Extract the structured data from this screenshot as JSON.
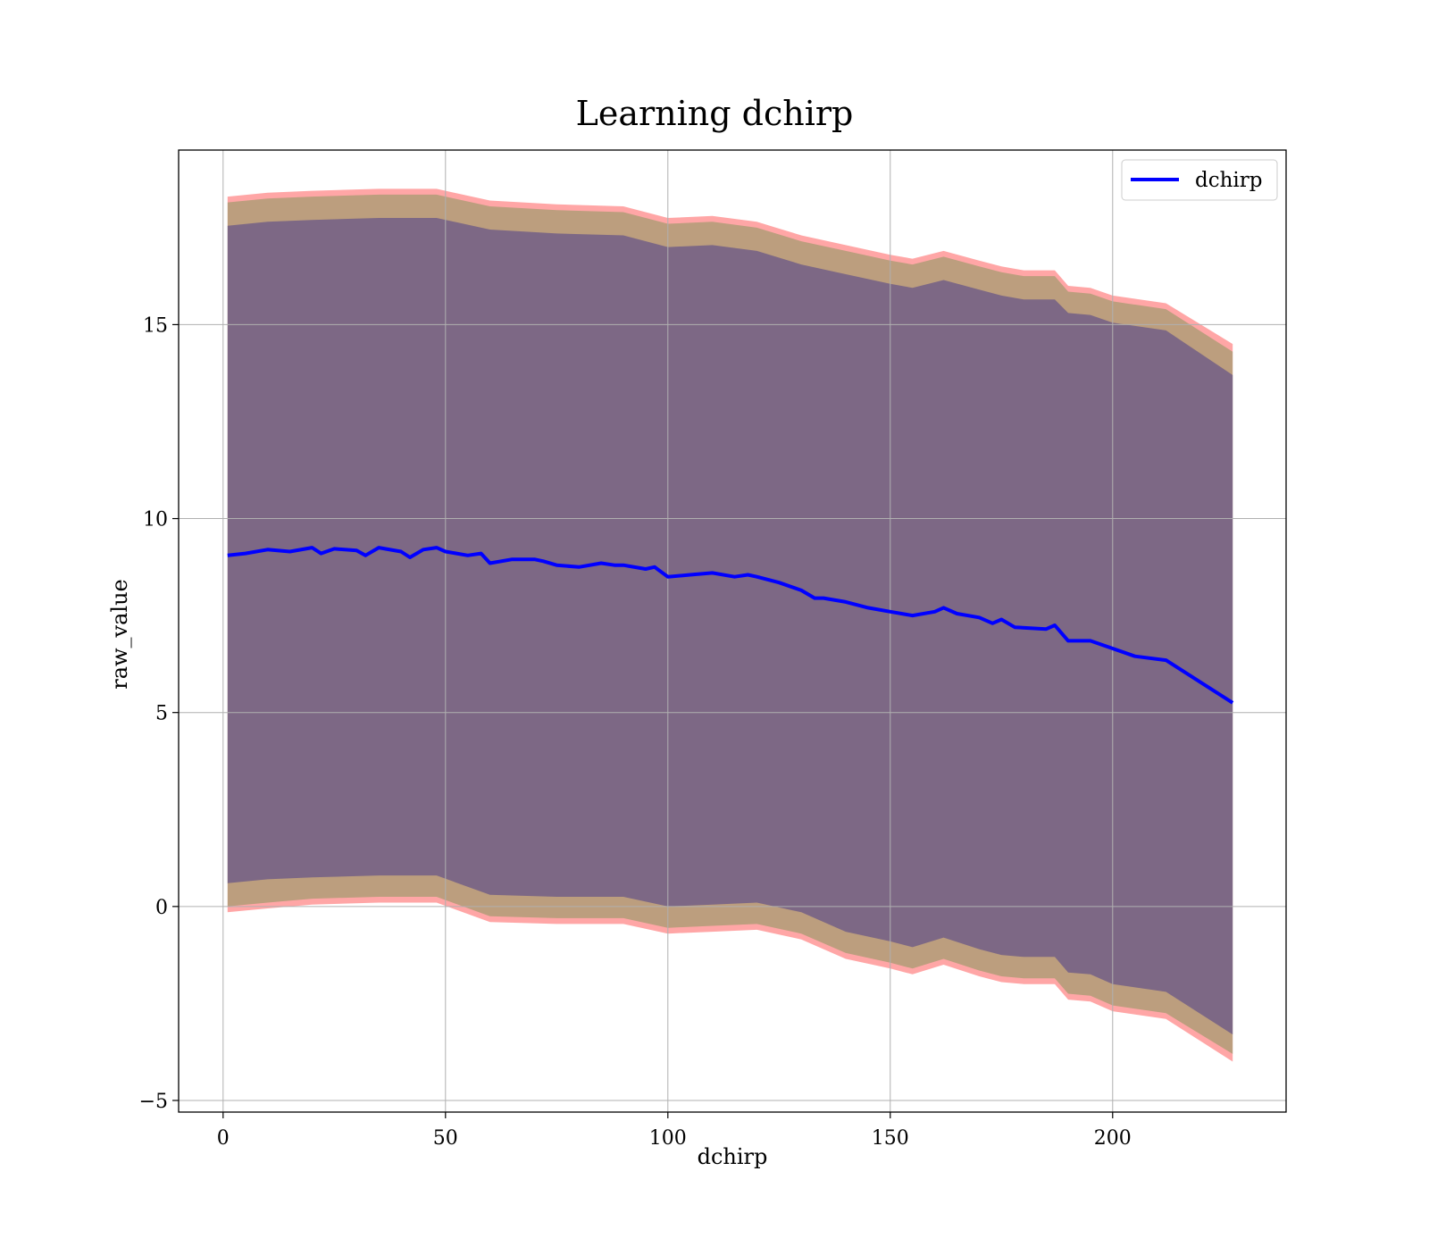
{
  "chart_data": {
    "type": "line",
    "title": "Learning dchirp",
    "xlabel": "dchirp",
    "ylabel": "raw_value",
    "xlim": [
      -10,
      239
    ],
    "ylim": [
      -5.3,
      19.5
    ],
    "xticks": [
      0,
      50,
      100,
      150,
      200
    ],
    "yticks": [
      -5,
      0,
      5,
      10,
      15
    ],
    "xtick_labels": [
      "0",
      "50",
      "100",
      "150",
      "200"
    ],
    "ytick_labels": [
      "−5",
      "0",
      "5",
      "10",
      "15"
    ],
    "grid": true,
    "legend_position": "top-right",
    "series": [
      {
        "name": "dchirp",
        "color": "#0000ff",
        "x": [
          1,
          5,
          10,
          15,
          20,
          22,
          25,
          30,
          32,
          35,
          40,
          42,
          45,
          48,
          50,
          55,
          58,
          60,
          65,
          70,
          72,
          75,
          80,
          85,
          88,
          90,
          95,
          97,
          100,
          105,
          110,
          115,
          118,
          120,
          125,
          130,
          133,
          135,
          140,
          145,
          150,
          155,
          160,
          162,
          165,
          170,
          173,
          175,
          178,
          185,
          187,
          190,
          195,
          200,
          205,
          212,
          227
        ],
        "y": [
          9.05,
          9.1,
          9.2,
          9.15,
          9.25,
          9.1,
          9.22,
          9.18,
          9.05,
          9.25,
          9.15,
          9.0,
          9.2,
          9.25,
          9.15,
          9.05,
          9.1,
          8.85,
          8.95,
          8.95,
          8.9,
          8.8,
          8.75,
          8.85,
          8.8,
          8.8,
          8.7,
          8.75,
          8.5,
          8.55,
          8.6,
          8.5,
          8.55,
          8.5,
          8.35,
          8.15,
          7.95,
          7.95,
          7.85,
          7.7,
          7.6,
          7.5,
          7.6,
          7.7,
          7.55,
          7.45,
          7.3,
          7.4,
          7.2,
          7.15,
          7.25,
          6.85,
          6.85,
          6.65,
          6.45,
          6.35,
          5.25
        ]
      }
    ],
    "bands": [
      {
        "fill": "#ff0000",
        "opacity": 0.35,
        "x": [
          1,
          10,
          20,
          35,
          48,
          60,
          75,
          90,
          100,
          110,
          120,
          130,
          140,
          150,
          155,
          162,
          170,
          175,
          180,
          187,
          190,
          195,
          200,
          212,
          227
        ],
        "upper": [
          18.3,
          18.4,
          18.45,
          18.5,
          18.5,
          18.2,
          18.1,
          18.05,
          17.75,
          17.8,
          17.65,
          17.3,
          17.05,
          16.8,
          16.7,
          16.9,
          16.65,
          16.5,
          16.4,
          16.4,
          16.0,
          15.95,
          15.75,
          15.55,
          14.5
        ],
        "lower": [
          -0.15,
          -0.05,
          0.05,
          0.1,
          0.1,
          -0.4,
          -0.45,
          -0.45,
          -0.7,
          -0.65,
          -0.6,
          -0.85,
          -1.35,
          -1.6,
          -1.75,
          -1.5,
          -1.8,
          -1.95,
          -2.0,
          -2.0,
          -2.4,
          -2.45,
          -2.7,
          -2.9,
          -4.0
        ]
      },
      {
        "fill": "#228b22",
        "opacity": 0.3,
        "x": [
          1,
          10,
          20,
          35,
          48,
          60,
          75,
          90,
          100,
          110,
          120,
          130,
          140,
          150,
          155,
          162,
          170,
          175,
          180,
          187,
          190,
          195,
          200,
          212,
          227
        ],
        "upper": [
          18.15,
          18.25,
          18.3,
          18.35,
          18.35,
          18.05,
          17.95,
          17.9,
          17.6,
          17.65,
          17.5,
          17.15,
          16.9,
          16.65,
          16.55,
          16.75,
          16.5,
          16.35,
          16.25,
          16.25,
          15.85,
          15.8,
          15.6,
          15.4,
          14.3
        ],
        "lower": [
          0.0,
          0.1,
          0.2,
          0.25,
          0.25,
          -0.25,
          -0.3,
          -0.3,
          -0.55,
          -0.5,
          -0.45,
          -0.7,
          -1.2,
          -1.45,
          -1.6,
          -1.35,
          -1.65,
          -1.8,
          -1.85,
          -1.85,
          -2.25,
          -2.3,
          -2.55,
          -2.75,
          -3.8
        ]
      },
      {
        "fill": "#483d8b",
        "opacity": 0.55,
        "x": [
          1,
          10,
          20,
          35,
          48,
          60,
          75,
          90,
          100,
          110,
          120,
          130,
          140,
          150,
          155,
          162,
          170,
          175,
          180,
          187,
          190,
          195,
          200,
          212,
          227
        ],
        "upper": [
          17.55,
          17.65,
          17.7,
          17.75,
          17.75,
          17.45,
          17.35,
          17.3,
          17.0,
          17.05,
          16.9,
          16.55,
          16.3,
          16.05,
          15.95,
          16.15,
          15.9,
          15.75,
          15.65,
          15.65,
          15.3,
          15.25,
          15.05,
          14.85,
          13.7
        ],
        "lower": [
          0.6,
          0.7,
          0.75,
          0.8,
          0.8,
          0.3,
          0.25,
          0.25,
          0.0,
          0.05,
          0.1,
          -0.15,
          -0.65,
          -0.9,
          -1.05,
          -0.8,
          -1.1,
          -1.25,
          -1.3,
          -1.3,
          -1.7,
          -1.75,
          -2.0,
          -2.2,
          -3.3
        ]
      }
    ]
  }
}
